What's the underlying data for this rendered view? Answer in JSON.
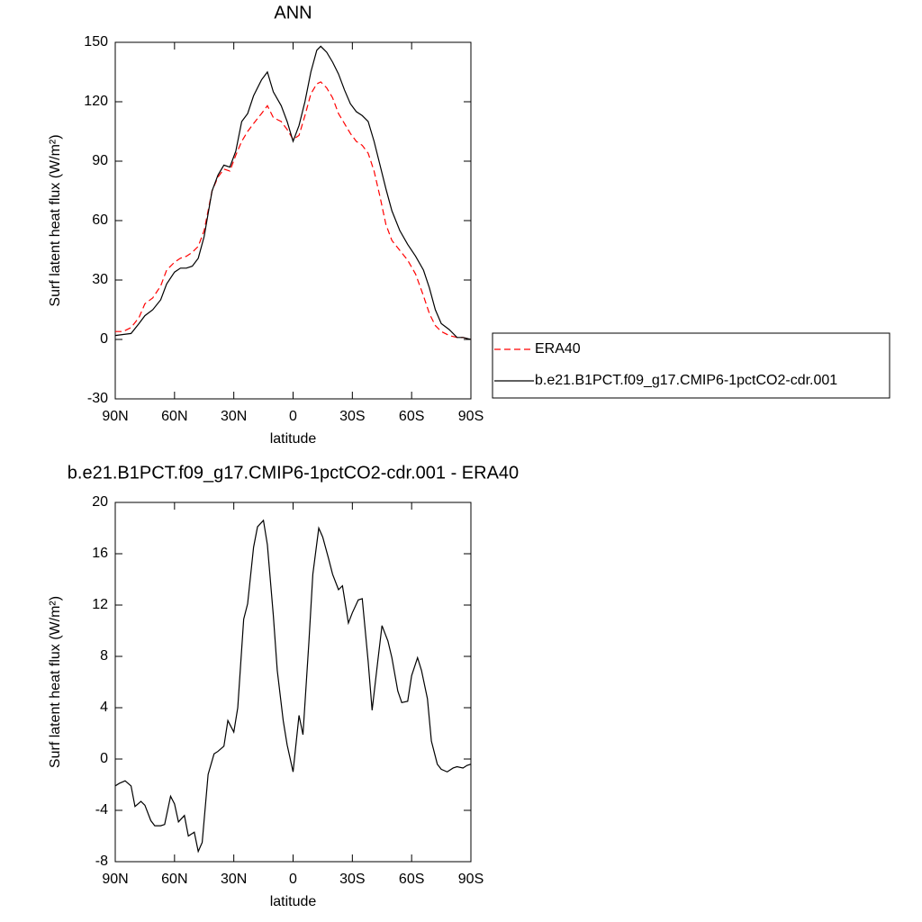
{
  "chart_data": [
    {
      "type": "line",
      "title": "ANN",
      "xlabel": "latitude",
      "ylabel": "Surf latent heat flux (W/m²)",
      "xlim": [
        90,
        -90
      ],
      "ylim": [
        -30,
        150
      ],
      "xticks": [
        {
          "value": 90,
          "label": "90N"
        },
        {
          "value": 60,
          "label": "60N"
        },
        {
          "value": 30,
          "label": "30N"
        },
        0,
        {
          "value": -30,
          "label": "30S"
        },
        {
          "value": -60,
          "label": "60S"
        },
        {
          "value": -90,
          "label": "90S"
        }
      ],
      "yticks": [
        -30,
        0,
        30,
        60,
        90,
        120,
        150
      ],
      "legend": "right",
      "x": [
        90,
        86,
        82,
        78,
        75,
        71,
        67,
        64,
        60,
        57,
        54,
        51,
        48,
        45,
        41,
        38,
        35,
        32,
        29,
        26,
        23,
        20,
        16,
        13,
        10,
        6,
        3,
        0,
        -3,
        -6,
        -9,
        -12,
        -14,
        -17,
        -20,
        -23,
        -26,
        -29,
        -32,
        -35,
        -38,
        -41,
        -44,
        -47,
        -50,
        -54,
        -58,
        -62,
        -66,
        -69,
        -72,
        -75,
        -79,
        -83,
        -86,
        -90
      ],
      "series": [
        {
          "name": "ERA40",
          "color": "#ff0000",
          "linestyle": "dashed",
          "values": [
            4,
            4,
            6,
            11,
            18,
            21,
            27,
            35,
            39,
            41,
            42,
            44,
            47,
            55,
            75,
            82,
            86,
            85,
            93,
            100,
            105,
            109,
            114,
            118,
            112,
            110,
            106,
            101,
            103,
            113,
            124,
            129,
            130,
            127,
            122,
            114,
            109,
            104,
            100,
            98,
            94,
            85,
            72,
            58,
            50,
            45,
            40,
            33,
            22,
            13,
            7,
            4,
            2,
            1,
            1,
            0
          ]
        },
        {
          "name": "b.e21.B1PCT.f09_g17.CMIP6-1pctCO2-cdr.001",
          "color": "#000000",
          "linestyle": "solid",
          "values": [
            2,
            2.5,
            3,
            8,
            12,
            15,
            20,
            28,
            34,
            36,
            36,
            37,
            41,
            52,
            75,
            83,
            88,
            87,
            95,
            110,
            114,
            123,
            131,
            135,
            125,
            118,
            110,
            100,
            108,
            120,
            135,
            146,
            148,
            145,
            140,
            134,
            126,
            119,
            115,
            113,
            110,
            100,
            88,
            76,
            65,
            55,
            48,
            42,
            35,
            26,
            15,
            8,
            5,
            1,
            1,
            0
          ]
        }
      ]
    },
    {
      "type": "line",
      "title": "b.e21.B1PCT.f09_g17.CMIP6-1pctCO2-cdr.001 - ERA40",
      "xlabel": "latitude",
      "ylabel": "Surf latent heat flux (W/m²)",
      "xlim": [
        90,
        -90
      ],
      "ylim": [
        -8,
        20
      ],
      "xticks": [
        {
          "value": 90,
          "label": "90N"
        },
        {
          "value": 60,
          "label": "60N"
        },
        {
          "value": 30,
          "label": "30N"
        },
        0,
        {
          "value": -30,
          "label": "30S"
        },
        {
          "value": -60,
          "label": "60S"
        },
        {
          "value": -90,
          "label": "90S"
        }
      ],
      "yticks": [
        -8,
        -4,
        0,
        4,
        8,
        12,
        16,
        20
      ],
      "x": [
        90,
        88,
        85,
        82,
        80,
        77,
        75,
        72,
        70,
        67,
        65,
        62,
        60,
        58,
        55,
        53,
        50,
        48,
        46,
        43,
        40,
        38,
        35,
        33,
        30,
        28,
        25,
        23,
        20,
        18,
        15,
        13,
        10,
        8,
        5,
        3,
        0,
        -3,
        -5,
        -8,
        -10,
        -13,
        -15,
        -18,
        -20,
        -23,
        -25,
        -28,
        -30,
        -33,
        -35,
        -38,
        -40,
        -43,
        -45,
        -48,
        -50,
        -53,
        -55,
        -58,
        -60,
        -63,
        -65,
        -68,
        -70,
        -73,
        -75,
        -78,
        -81,
        -83,
        -86,
        -88,
        -90
      ],
      "color": "#000000",
      "values": [
        -2.1,
        -1.9,
        -1.7,
        -2.1,
        -3.7,
        -3.3,
        -3.6,
        -4.8,
        -5.2,
        -5.2,
        -5.1,
        -2.9,
        -3.5,
        -4.9,
        -4.4,
        -6.0,
        -5.7,
        -7.2,
        -6.5,
        -1.2,
        0.4,
        0.6,
        1.0,
        3.0,
        2.1,
        4.0,
        10.9,
        12.1,
        16.5,
        18.1,
        18.6,
        16.7,
        11.2,
        6.9,
        3.0,
        1.1,
        -1.0,
        3.4,
        1.9,
        9.1,
        14.4,
        18.0,
        17.3,
        15.6,
        14.4,
        13.2,
        13.5,
        10.6,
        11.4,
        12.4,
        12.5,
        7.6,
        3.8,
        7.8,
        10.4,
        9.2,
        7.9,
        5.3,
        4.4,
        4.5,
        6.5,
        7.9,
        6.9,
        4.7,
        1.4,
        -0.4,
        -0.8,
        -1.0,
        -0.7,
        -0.6,
        -0.7,
        -0.5,
        -0.4
      ]
    }
  ]
}
